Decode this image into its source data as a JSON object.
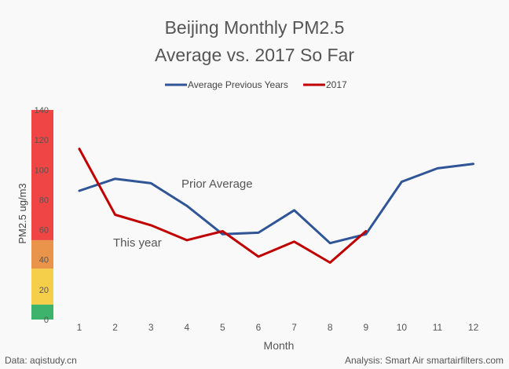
{
  "chart_data": {
    "type": "line",
    "title_line1": "Beijing Monthly PM2.5",
    "title_line2": "Average vs. 2017 So Far",
    "xlabel": "Month",
    "ylabel": "PM2.5 ug/m3",
    "categories": [
      "1",
      "2",
      "3",
      "4",
      "5",
      "6",
      "7",
      "8",
      "9",
      "10",
      "11",
      "12"
    ],
    "yticks": [
      "0",
      "20",
      "40",
      "60",
      "80",
      "100",
      "120",
      "140"
    ],
    "ylim": [
      0,
      140
    ],
    "legend_position": "top",
    "series": [
      {
        "name": "Average Previous Years",
        "color": "#2f5597",
        "values": [
          86,
          94,
          91,
          76,
          57,
          58,
          73,
          51,
          57,
          92,
          101,
          104
        ]
      },
      {
        "name": "2017",
        "color": "#c00000",
        "values": [
          114,
          70,
          63,
          53,
          59,
          42,
          52,
          38,
          59,
          null,
          null,
          null
        ]
      }
    ],
    "aqi_bands": [
      {
        "from": 0,
        "to": 10,
        "color": "#3db36b"
      },
      {
        "from": 10,
        "to": 34,
        "color": "#f5cf4a"
      },
      {
        "from": 34,
        "to": 53,
        "color": "#e9944a"
      },
      {
        "from": 53,
        "to": 140,
        "color": "#f04545"
      }
    ],
    "annotations": [
      {
        "text": "Prior Average",
        "series": 0
      },
      {
        "text": "This year",
        "series": 1
      }
    ]
  },
  "footer": {
    "source": "Data: aqistudy.cn",
    "credit": "Analysis: Smart Air smartairfilters.com"
  }
}
